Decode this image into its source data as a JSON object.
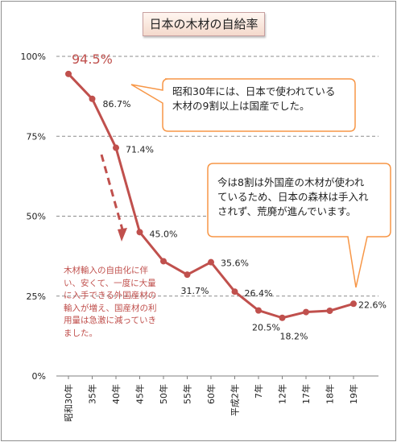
{
  "chart_data": {
    "type": "line",
    "title": "日本の木材の自給率",
    "categories": [
      "昭和30年",
      "35年",
      "40年",
      "45年",
      "50年",
      "55年",
      "60年",
      "平成2年",
      "7年",
      "12年",
      "17年",
      "18年",
      "19年"
    ],
    "series": [
      {
        "values": [
          94.5,
          86.7,
          71.4,
          45.0,
          35.9,
          31.7,
          35.6,
          26.4,
          20.5,
          18.2,
          20.0,
          20.4,
          22.6
        ]
      }
    ],
    "data_labels": [
      "94.5%",
      "86.7%",
      "71.4%",
      "45.0%",
      "",
      "31.7%",
      "35.6%",
      "26.4%",
      "20.5%",
      "18.2%",
      "",
      "",
      "22.6%"
    ],
    "y_ticks": [
      "0%",
      "25%",
      "50%",
      "75%",
      "100%"
    ],
    "ylim": [
      0,
      100
    ],
    "xlabel": "",
    "ylabel": "",
    "grid": true,
    "line_color": "#c0504d",
    "callouts": {
      "top_line1": "昭和30年には、日本で使われている",
      "top_line2": "木材の9割以上は国産でした。",
      "right_line1": "今は8割は外国産の木材が使われ",
      "right_line2": "ているため、日本の森林は手入れ",
      "right_line3": "されず、荒廃が進んでいます。",
      "border_color": "#f79646"
    },
    "annotation": "木材輸入の自由化に伴い、安くて、一度に大量に入手できる外国産材の輸入が増え、国産材の利用量は急激に減っていきました。"
  }
}
